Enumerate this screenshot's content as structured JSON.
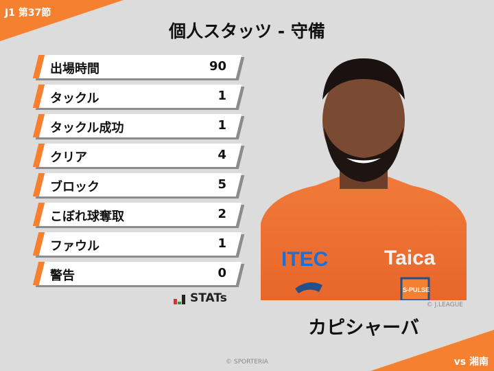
{
  "header": {
    "round": "J1 第37節",
    "title": "個人スタッツ - 守備"
  },
  "stats": [
    {
      "label": "出場時間",
      "value": "90"
    },
    {
      "label": "タックル",
      "value": "1"
    },
    {
      "label": "タックル成功",
      "value": "1"
    },
    {
      "label": "クリア",
      "value": "4"
    },
    {
      "label": "ブロック",
      "value": "5"
    },
    {
      "label": "こぼれ球奪取",
      "value": "2"
    },
    {
      "label": "ファウル",
      "value": "1"
    },
    {
      "label": "警告",
      "value": "0"
    }
  ],
  "brand": {
    "logo_text": "STATs"
  },
  "player": {
    "name": "カピシャーバ",
    "photo_credit": "© J.LEAGUE",
    "sponsor_1": "ITEC",
    "sponsor_2": "Taica",
    "crest": "S-PULSE"
  },
  "footer": {
    "copyright": "© SPORTERIA",
    "opponent": "vs 湘南"
  },
  "colors": {
    "accent": "#f58030",
    "background": "#dcdcdc"
  }
}
